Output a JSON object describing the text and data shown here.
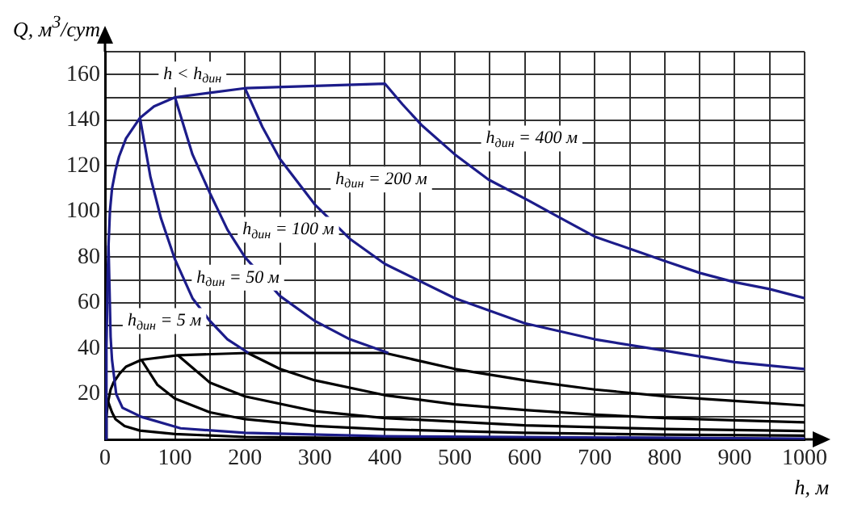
{
  "chart_data": {
    "type": "line",
    "xlabel": "h, м",
    "ylabel": "Q, м$^{3}$/сут",
    "xlim": [
      0,
      1000
    ],
    "ylim": [
      0,
      170
    ],
    "xticks": [
      0,
      {
        "value": 50,
        "label": null
      },
      100,
      {
        "value": 150,
        "label": null
      },
      200,
      {
        "value": 250,
        "label": null
      },
      300,
      {
        "value": 350,
        "label": null
      },
      400,
      {
        "value": 450,
        "label": null
      },
      500,
      {
        "value": 550,
        "label": null
      },
      600,
      {
        "value": 650,
        "label": null
      },
      700,
      {
        "value": 750,
        "label": null
      },
      800,
      {
        "value": 850,
        "label": null
      },
      900,
      {
        "value": 950,
        "label": null
      },
      1000
    ],
    "yticks": [
      {
        "value": 0,
        "label": null
      },
      {
        "value": 10,
        "label": null
      },
      20,
      {
        "value": 30,
        "label": null
      },
      40,
      {
        "value": 50,
        "label": null
      },
      60,
      {
        "value": 70,
        "label": null
      },
      80,
      {
        "value": 90,
        "label": null
      },
      100,
      {
        "value": 110,
        "label": null
      },
      120,
      {
        "value": 130,
        "label": null
      },
      140,
      {
        "value": 150,
        "label": null
      },
      160,
      {
        "value": 170,
        "label": null
      }
    ],
    "grid": true,
    "legend": false,
    "marker": "none",
    "line_style": "solid",
    "series": [
      {
        "color": "#1c1c8a",
        "x": [
          0,
          2,
          4,
          5,
          7,
          10,
          15,
          20,
          30,
          50,
          70,
          100,
          150,
          200,
          300,
          400,
          425,
          452,
          500,
          548,
          604,
          652,
          700,
          756,
          803,
          851,
          900,
          950,
          1000
        ],
        "values": [
          0,
          40,
          75,
          85,
          100,
          110,
          118,
          124,
          132,
          141,
          146,
          150,
          152,
          154,
          155,
          156,
          147,
          138,
          125,
          114,
          105,
          97,
          89,
          83,
          78,
          73,
          69,
          66,
          62
        ]
      },
      {
        "color": "#1c1c8a",
        "x": [
          5,
          8,
          10,
          16,
          25,
          52,
          108,
          200,
          400,
          1000
        ],
        "values": [
          85,
          45,
          35,
          20,
          14,
          10,
          5,
          3,
          1.5,
          0.5
        ]
      },
      {
        "color": "#1c1c8a",
        "x": [
          50,
          65,
          80,
          100,
          125,
          150,
          175,
          205
        ],
        "values": [
          141,
          115,
          97,
          79,
          62,
          52,
          44,
          38
        ]
      },
      {
        "color": "#1c1c8a",
        "x": [
          100,
          125,
          150,
          175,
          200,
          250,
          300,
          350,
          405
        ],
        "values": [
          150,
          125,
          108,
          92,
          80,
          63,
          52,
          44,
          38
        ]
      },
      {
        "color": "#1c1c8a",
        "x": [
          200,
          225,
          250,
          300,
          350,
          400,
          500,
          600,
          700,
          800,
          900,
          1000
        ],
        "values": [
          154,
          137,
          123,
          103,
          88,
          77,
          62,
          51,
          44,
          39,
          34,
          31
        ]
      },
      {
        "color": "#000000",
        "x": [
          0,
          2,
          4,
          8,
          12,
          21,
          30,
          52,
          104,
          204,
          300,
          400,
          500,
          600,
          700,
          800,
          900,
          1000
        ],
        "values": [
          0,
          10,
          16,
          22,
          25,
          29,
          32,
          35,
          37,
          38,
          38,
          38,
          31,
          26,
          22,
          19,
          17,
          15
        ]
      },
      {
        "color": "#000000",
        "x": [
          4,
          10,
          15,
          28,
          50,
          100,
          200,
          400,
          1000
        ],
        "values": [
          17,
          12,
          9,
          6,
          4,
          2.5,
          1.2,
          0.6,
          0.2
        ]
      },
      {
        "color": "#000000",
        "x": [
          52,
          75,
          100,
          150,
          200,
          300,
          400,
          600,
          800,
          1000
        ],
        "values": [
          35,
          24,
          18,
          12,
          9,
          6,
          4.5,
          3,
          2.2,
          1.8
        ]
      },
      {
        "color": "#000000",
        "x": [
          104,
          150,
          200,
          300,
          400,
          600,
          800,
          1000
        ],
        "values": [
          37,
          25,
          19,
          12.5,
          9.5,
          6.3,
          4.7,
          3.8
        ]
      },
      {
        "color": "#000000",
        "x": [
          204,
          250,
          300,
          400,
          500,
          600,
          700,
          800,
          900,
          1000
        ],
        "values": [
          38,
          31,
          26,
          19.5,
          15.5,
          13,
          11,
          9.5,
          8.5,
          7.6
        ]
      }
    ],
    "annotations": [
      "h < h$_{дин}$",
      "h$_{дин}$ = 400 м",
      "h$_{дин}$ = 200 м",
      "h$_{дин}$ = 100 м",
      "h$_{дин}$ = 50 м",
      "h$_{дин}$ = 5 м"
    ]
  }
}
